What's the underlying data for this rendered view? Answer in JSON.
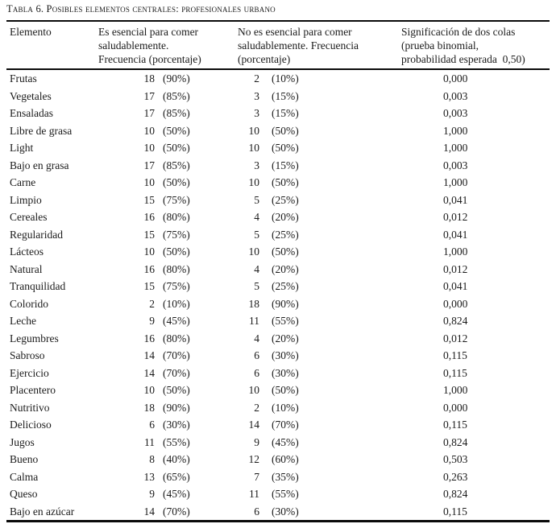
{
  "colors": {
    "text": "#1b1b1b",
    "rule": "#0a0a0a",
    "background": "#ffffff"
  },
  "page": {
    "caption": "Tabla 6. Posibles elementos centrales: profesionales urbano"
  },
  "table": {
    "headers": [
      {
        "id": "elemento",
        "lines": [
          "Elemento"
        ]
      },
      {
        "id": "esencial",
        "lines": [
          "Es esencial para comer",
          "saludablemente.",
          "Frecuencia (porcentaje)"
        ]
      },
      {
        "id": "no_esencial",
        "lines": [
          "No es esencial para comer",
          "saludablemente. Frecuencia",
          "(porcentaje)"
        ]
      },
      {
        "id": "significacion",
        "lines": [
          "Significación de dos colas",
          "(prueba binomial,",
          "probabilidad esperada  0,50)"
        ]
      }
    ],
    "rows": [
      {
        "element": "Frutas",
        "yes_freq": "18",
        "yes_pct": "(90%)",
        "no_freq": "2",
        "no_pct": "(10%)",
        "sig": "0,000"
      },
      {
        "element": "Vegetales",
        "yes_freq": "17",
        "yes_pct": "(85%)",
        "no_freq": "3",
        "no_pct": "(15%)",
        "sig": "0,003"
      },
      {
        "element": "Ensaladas",
        "yes_freq": "17",
        "yes_pct": "(85%)",
        "no_freq": "3",
        "no_pct": "(15%)",
        "sig": "0,003"
      },
      {
        "element": "Libre de grasa",
        "yes_freq": "10",
        "yes_pct": "(50%)",
        "no_freq": "10",
        "no_pct": "(50%)",
        "sig": "1,000"
      },
      {
        "element": "Light",
        "yes_freq": "10",
        "yes_pct": "(50%)",
        "no_freq": "10",
        "no_pct": "(50%)",
        "sig": "1,000"
      },
      {
        "element": "Bajo en grasa",
        "yes_freq": "17",
        "yes_pct": "(85%)",
        "no_freq": "3",
        "no_pct": "(15%)",
        "sig": "0,003"
      },
      {
        "element": "Carne",
        "yes_freq": "10",
        "yes_pct": "(50%)",
        "no_freq": "10",
        "no_pct": "(50%)",
        "sig": "1,000"
      },
      {
        "element": "Limpio",
        "yes_freq": "15",
        "yes_pct": "(75%)",
        "no_freq": "5",
        "no_pct": "(25%)",
        "sig": "0,041"
      },
      {
        "element": "Cereales",
        "yes_freq": "16",
        "yes_pct": "(80%)",
        "no_freq": "4",
        "no_pct": "(20%)",
        "sig": "0,012"
      },
      {
        "element": "Regularidad",
        "yes_freq": "15",
        "yes_pct": "(75%)",
        "no_freq": "5",
        "no_pct": "(25%)",
        "sig": "0,041"
      },
      {
        "element": "Lácteos",
        "yes_freq": "10",
        "yes_pct": "(50%)",
        "no_freq": "10",
        "no_pct": "(50%)",
        "sig": "1,000"
      },
      {
        "element": "Natural",
        "yes_freq": "16",
        "yes_pct": "(80%)",
        "no_freq": "4",
        "no_pct": "(20%)",
        "sig": "0,012"
      },
      {
        "element": "Tranquilidad",
        "yes_freq": "15",
        "yes_pct": "(75%)",
        "no_freq": "5",
        "no_pct": "(25%)",
        "sig": "0,041"
      },
      {
        "element": "Colorido",
        "yes_freq": "2",
        "yes_pct": "(10%)",
        "no_freq": "18",
        "no_pct": "(90%)",
        "sig": "0,000"
      },
      {
        "element": "Leche",
        "yes_freq": "9",
        "yes_pct": "(45%)",
        "no_freq": "11",
        "no_pct": "(55%)",
        "sig": "0,824"
      },
      {
        "element": "Legumbres",
        "yes_freq": "16",
        "yes_pct": "(80%)",
        "no_freq": "4",
        "no_pct": "(20%)",
        "sig": "0,012"
      },
      {
        "element": "Sabroso",
        "yes_freq": "14",
        "yes_pct": "(70%)",
        "no_freq": "6",
        "no_pct": "(30%)",
        "sig": "0,115"
      },
      {
        "element": "Ejercicio",
        "yes_freq": "14",
        "yes_pct": "(70%)",
        "no_freq": "6",
        "no_pct": "(30%)",
        "sig": "0,115"
      },
      {
        "element": "Placentero",
        "yes_freq": "10",
        "yes_pct": "(50%)",
        "no_freq": "10",
        "no_pct": "(50%)",
        "sig": "1,000"
      },
      {
        "element": "Nutritivo",
        "yes_freq": "18",
        "yes_pct": "(90%)",
        "no_freq": "2",
        "no_pct": "(10%)",
        "sig": "0,000"
      },
      {
        "element": "Delicioso",
        "yes_freq": "6",
        "yes_pct": "(30%)",
        "no_freq": "14",
        "no_pct": "(70%)",
        "sig": "0,115"
      },
      {
        "element": "Jugos",
        "yes_freq": "11",
        "yes_pct": "(55%)",
        "no_freq": "9",
        "no_pct": "(45%)",
        "sig": "0,824"
      },
      {
        "element": "Bueno",
        "yes_freq": "8",
        "yes_pct": "(40%)",
        "no_freq": "12",
        "no_pct": "(60%)",
        "sig": "0,503"
      },
      {
        "element": "Calma",
        "yes_freq": "13",
        "yes_pct": "(65%)",
        "no_freq": "7",
        "no_pct": "(35%)",
        "sig": "0,263"
      },
      {
        "element": "Queso",
        "yes_freq": "9",
        "yes_pct": "(45%)",
        "no_freq": "11",
        "no_pct": "(55%)",
        "sig": "0,824"
      },
      {
        "element": "Bajo en azúcar",
        "yes_freq": "14",
        "yes_pct": "(70%)",
        "no_freq": "6",
        "no_pct": "(30%)",
        "sig": "0,115"
      }
    ]
  }
}
